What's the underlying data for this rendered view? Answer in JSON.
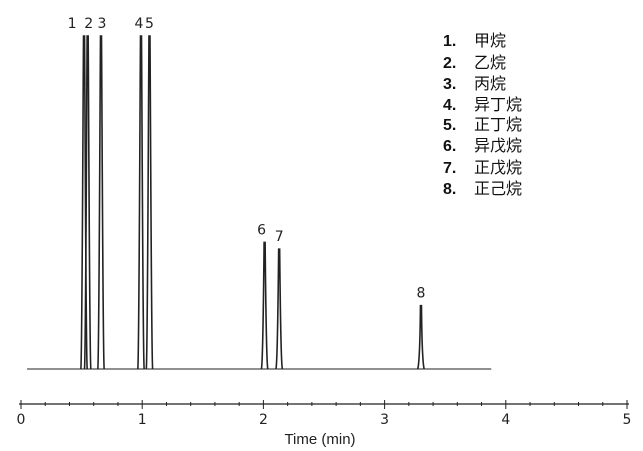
{
  "chart_data": {
    "type": "line",
    "title": "",
    "xlabel": "Time (min)",
    "ylabel": "",
    "xlim": [
      0,
      5
    ],
    "x_ticks": [
      "0",
      "1",
      "2",
      "3",
      "4",
      "5"
    ],
    "minor_tick_step": 0.2,
    "grid": false,
    "baseline_range": [
      0.05,
      3.88
    ],
    "y_units": "relative signal (peaks 1-5 off scale at 100)",
    "peaks": [
      {
        "label": "1",
        "time": 0.52,
        "height": 100
      },
      {
        "label": "2",
        "time": 0.55,
        "height": 100
      },
      {
        "label": "3",
        "time": 0.66,
        "height": 100
      },
      {
        "label": "4",
        "time": 0.99,
        "height": 100
      },
      {
        "label": "5",
        "time": 1.06,
        "height": 100
      },
      {
        "label": "6",
        "time": 2.01,
        "height": 38
      },
      {
        "label": "7",
        "time": 2.13,
        "height": 36
      },
      {
        "label": "8",
        "time": 3.3,
        "height": 19
      }
    ],
    "legend_placement": "top-right",
    "legend": [
      {
        "num": "1.",
        "name": "甲烷"
      },
      {
        "num": "2.",
        "name": "乙烷"
      },
      {
        "num": "3.",
        "name": "丙烷"
      },
      {
        "num": "4.",
        "name": "异丁烷"
      },
      {
        "num": "5.",
        "name": "正丁烷"
      },
      {
        "num": "6.",
        "name": "异戊烷"
      },
      {
        "num": "7.",
        "name": "正戊烷"
      },
      {
        "num": "8.",
        "name": "正己烷"
      }
    ],
    "line_color": "#222222"
  }
}
